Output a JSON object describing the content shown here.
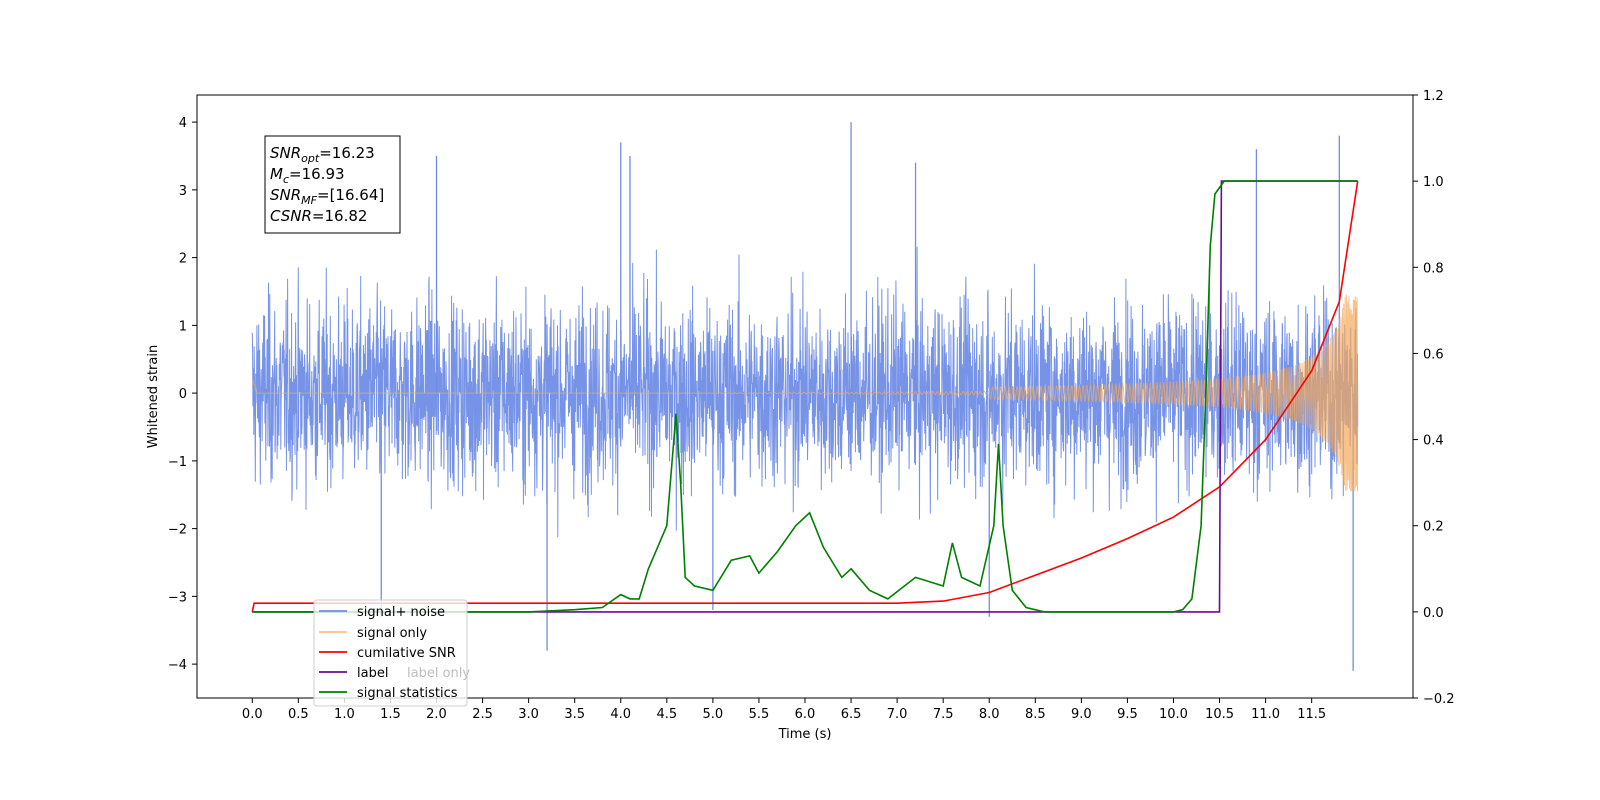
{
  "chart_data": {
    "type": "line",
    "xlabel": "Time (s)",
    "ylabel": "Whitened strain",
    "xlim": [
      -0.6,
      12.6
    ],
    "ylim": [
      -4.5,
      4.4
    ],
    "y2lim": [
      -0.2,
      1.2
    ],
    "x_ticks": [
      0.0,
      0.5,
      1.0,
      1.5,
      2.0,
      2.5,
      3.0,
      3.5,
      4.0,
      4.5,
      5.0,
      5.5,
      6.0,
      6.5,
      7.0,
      7.5,
      8.0,
      8.5,
      9.0,
      9.5,
      10.0,
      10.5,
      11.0,
      11.5
    ],
    "x_tick_labels": [
      "0.0",
      "0.5",
      "1.0",
      "1.5",
      "2.0",
      "2.5",
      "3.0",
      "3.5",
      "4.0",
      "4.5",
      "5.0",
      "5.5",
      "6.0",
      "6.5",
      "7.0",
      "7.5",
      "8.0",
      "8.5",
      "9.0",
      "9.5",
      "10.0",
      "10.5",
      "11.0",
      "11.5"
    ],
    "y_ticks": [
      -4,
      -3,
      -2,
      -1,
      0,
      1,
      2,
      3,
      4
    ],
    "y_tick_labels": [
      "−4",
      "−3",
      "−2",
      "−1",
      "0",
      "1",
      "2",
      "3",
      "4"
    ],
    "y2_ticks": [
      -0.2,
      0.0,
      0.2,
      0.4,
      0.6,
      0.8,
      1.0,
      1.2
    ],
    "y2_tick_labels": [
      "−0.2",
      "0.0",
      "0.2",
      "0.4",
      "0.6",
      "0.8",
      "1.0",
      "1.2"
    ],
    "grid": false,
    "legend_position": "lower-left",
    "annotation": {
      "lines": [
        {
          "var": "SNR",
          "sub": "opt",
          "value": "=16.23"
        },
        {
          "var": "M",
          "sub": "c",
          "value": "=16.93"
        },
        {
          "var": "SNR",
          "sub": "MF",
          "value": "=[16.64]"
        },
        {
          "var": "CSNR",
          "sub": "",
          "value": "=16.82"
        }
      ],
      "position": "upper-left"
    },
    "series": [
      {
        "name": "signal+ noise",
        "color": "#6f8de6",
        "axis": "left",
        "style": "noise",
        "x_range": [
          0.0,
          12.0
        ],
        "envelope": [
          -2.0,
          2.0
        ],
        "spikes_x": [
          1.4,
          2.0,
          3.2,
          4.0,
          4.1,
          5.0,
          6.5,
          7.2,
          8.0,
          10.9,
          11.8,
          11.95
        ],
        "spikes_y": [
          -3.3,
          3.5,
          -3.8,
          3.7,
          3.5,
          -3.2,
          4.0,
          3.4,
          -3.3,
          3.6,
          3.8,
          -4.1
        ]
      },
      {
        "name": "signal only",
        "color": "#f5a85a",
        "axis": "left",
        "style": "chirp",
        "x_range": [
          0.0,
          12.0
        ],
        "amplitude_start": 0.005,
        "amplitude_end": 1.45
      },
      {
        "name": "cumilative SNR",
        "color": "#ff0000",
        "axis": "right",
        "x": [
          0.0,
          0.02,
          2.0,
          4.0,
          6.0,
          7.0,
          7.5,
          8.0,
          8.5,
          9.0,
          9.5,
          10.0,
          10.5,
          11.0,
          11.5,
          11.8,
          12.0
        ],
        "y": [
          0.0,
          0.02,
          0.02,
          0.02,
          0.02,
          0.02,
          0.025,
          0.045,
          0.085,
          0.125,
          0.17,
          0.22,
          0.29,
          0.4,
          0.56,
          0.72,
          1.0
        ]
      },
      {
        "name": "label",
        "color": "#6a0d91",
        "axis": "right",
        "x": [
          0.0,
          10.5,
          10.52,
          12.0
        ],
        "y": [
          0.0,
          0.0,
          1.0,
          1.0
        ]
      },
      {
        "name": "label only",
        "color": "#6a0d91",
        "axis": "right",
        "x": [],
        "y": []
      },
      {
        "name": "signal statistics",
        "color": "#008000",
        "axis": "right",
        "x": [
          0.0,
          3.0,
          3.5,
          3.8,
          4.0,
          4.1,
          4.2,
          4.3,
          4.4,
          4.5,
          4.6,
          4.65,
          4.7,
          4.8,
          5.0,
          5.2,
          5.4,
          5.5,
          5.7,
          5.9,
          6.05,
          6.2,
          6.4,
          6.5,
          6.7,
          6.9,
          7.2,
          7.5,
          7.6,
          7.7,
          7.9,
          8.05,
          8.1,
          8.15,
          8.25,
          8.4,
          8.6,
          9.0,
          9.5,
          10.0,
          10.1,
          10.2,
          10.3,
          10.35,
          10.4,
          10.45,
          10.55,
          10.7,
          11.0,
          11.5,
          12.0
        ],
        "y": [
          0.0,
          0.0,
          0.005,
          0.01,
          0.04,
          0.03,
          0.03,
          0.1,
          0.15,
          0.2,
          0.46,
          0.3,
          0.08,
          0.06,
          0.05,
          0.12,
          0.13,
          0.09,
          0.14,
          0.2,
          0.23,
          0.15,
          0.08,
          0.1,
          0.05,
          0.03,
          0.08,
          0.06,
          0.16,
          0.08,
          0.06,
          0.2,
          0.39,
          0.2,
          0.05,
          0.01,
          0.0,
          0.0,
          0.0,
          0.0,
          0.005,
          0.03,
          0.2,
          0.5,
          0.85,
          0.97,
          1.0,
          1.0,
          1.0,
          1.0,
          1.0
        ]
      }
    ]
  }
}
